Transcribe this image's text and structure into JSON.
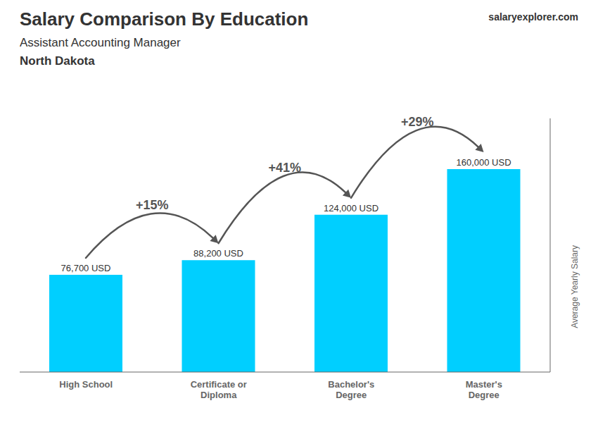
{
  "chart_data": {
    "type": "bar",
    "title": "Salary Comparison By Education",
    "subtitle": "Assistant Accounting Manager",
    "categories": [
      "High School",
      "Certificate or\nDiploma",
      "Bachelor's\nDegree",
      "Master's\nDegree"
    ],
    "values": [
      76700,
      88200,
      124000,
      160000
    ],
    "value_labels": [
      "76,700 USD",
      "88,200 USD",
      "124,000 USD",
      "160,000 USD"
    ],
    "data_labels": true,
    "color": "#00CFFF",
    "ylim": [
      0,
      200000
    ],
    "ylabel": "Average Yearly Salary",
    "tick_labels": "x",
    "grid": false,
    "annotations": [
      {
        "text": "North Dakota"
      },
      {
        "text": "salaryexplorer.com"
      },
      {
        "text": "+15%",
        "between": [
          0,
          1
        ]
      },
      {
        "text": "+41%",
        "between": [
          1,
          2
        ]
      },
      {
        "text": "+29%",
        "between": [
          2,
          3
        ]
      }
    ]
  }
}
